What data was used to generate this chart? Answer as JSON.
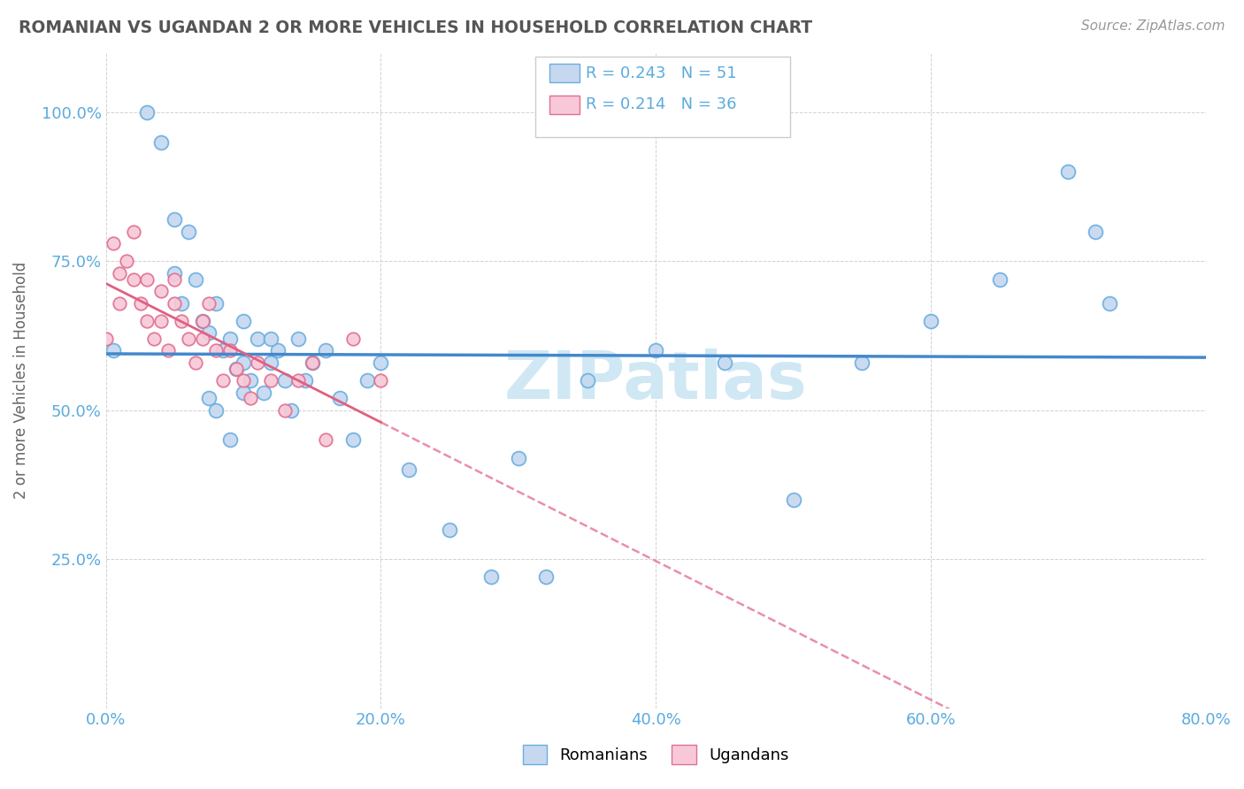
{
  "title": "ROMANIAN VS UGANDAN 2 OR MORE VEHICLES IN HOUSEHOLD CORRELATION CHART",
  "source": "Source: ZipAtlas.com",
  "ylabel": "2 or more Vehicles in Household",
  "xmin": 0.0,
  "xmax": 0.8,
  "ymin": 0.0,
  "ymax": 1.1,
  "xticks": [
    0.0,
    0.2,
    0.4,
    0.6,
    0.8
  ],
  "xtick_labels": [
    "0.0%",
    "20.0%",
    "40.0%",
    "60.0%",
    "80.0%"
  ],
  "yticks": [
    0.25,
    0.5,
    0.75,
    1.0
  ],
  "ytick_labels": [
    "25.0%",
    "50.0%",
    "75.0%",
    "100.0%"
  ],
  "legend_r_romanian": "R = 0.243",
  "legend_n_romanian": "N = 51",
  "legend_r_ugandan": "R = 0.214",
  "legend_n_ugandan": "N = 36",
  "color_romanian_fill": "#c5d8f0",
  "color_romanian_edge": "#6aaee0",
  "color_ugandan_fill": "#f8c8d8",
  "color_ugandan_edge": "#e07090",
  "color_romanian_line": "#4488cc",
  "color_ugandan_line": "#e06080",
  "watermark_color": "#d0e8f4",
  "romanian_x": [
    0.005,
    0.03,
    0.04,
    0.05,
    0.05,
    0.055,
    0.06,
    0.065,
    0.07,
    0.075,
    0.08,
    0.085,
    0.09,
    0.095,
    0.1,
    0.1,
    0.105,
    0.11,
    0.115,
    0.12,
    0.125,
    0.13,
    0.135,
    0.14,
    0.145,
    0.15,
    0.16,
    0.17,
    0.18,
    0.19,
    0.2,
    0.22,
    0.25,
    0.28,
    0.3,
    0.32,
    0.35,
    0.4,
    0.45,
    0.5,
    0.55,
    0.6,
    0.65,
    0.7,
    0.72,
    0.73,
    0.075,
    0.08,
    0.09,
    0.1,
    0.12
  ],
  "romanian_y": [
    0.6,
    1.0,
    0.95,
    0.82,
    0.73,
    0.68,
    0.8,
    0.72,
    0.65,
    0.63,
    0.68,
    0.6,
    0.62,
    0.57,
    0.58,
    0.65,
    0.55,
    0.62,
    0.53,
    0.58,
    0.6,
    0.55,
    0.5,
    0.62,
    0.55,
    0.58,
    0.6,
    0.52,
    0.45,
    0.55,
    0.58,
    0.4,
    0.3,
    0.22,
    0.42,
    0.22,
    0.55,
    0.6,
    0.58,
    0.35,
    0.58,
    0.65,
    0.72,
    0.9,
    0.8,
    0.68,
    0.52,
    0.5,
    0.45,
    0.53,
    0.62
  ],
  "ugandan_x": [
    0.0,
    0.005,
    0.01,
    0.01,
    0.015,
    0.02,
    0.02,
    0.025,
    0.03,
    0.03,
    0.035,
    0.04,
    0.04,
    0.045,
    0.05,
    0.05,
    0.055,
    0.06,
    0.065,
    0.07,
    0.07,
    0.075,
    0.08,
    0.085,
    0.09,
    0.095,
    0.1,
    0.105,
    0.11,
    0.12,
    0.13,
    0.14,
    0.15,
    0.16,
    0.18,
    0.2
  ],
  "ugandan_y": [
    0.62,
    0.78,
    0.73,
    0.68,
    0.75,
    0.72,
    0.8,
    0.68,
    0.72,
    0.65,
    0.62,
    0.7,
    0.65,
    0.6,
    0.68,
    0.72,
    0.65,
    0.62,
    0.58,
    0.62,
    0.65,
    0.68,
    0.6,
    0.55,
    0.6,
    0.57,
    0.55,
    0.52,
    0.58,
    0.55,
    0.5,
    0.55,
    0.58,
    0.45,
    0.62,
    0.55
  ]
}
